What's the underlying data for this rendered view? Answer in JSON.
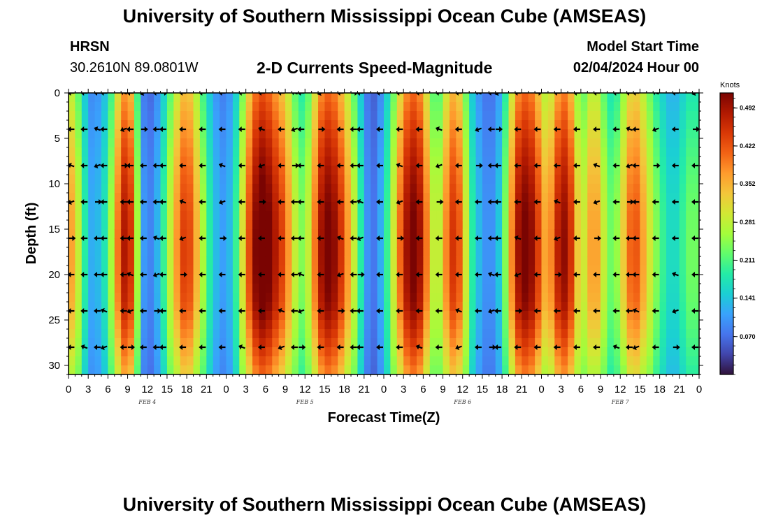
{
  "header": {
    "title": "University of Southern Mississippi Ocean Cube (AMSEAS)",
    "station": "HRSN",
    "coords": "30.2610N  89.0801W",
    "subtitle": "2-D Currents Speed-Magnitude",
    "model_start_label": "Model Start Time",
    "model_start_value": "02/04/2024 Hour 00"
  },
  "footer": {
    "title": "University of Southern Mississippi Ocean Cube (AMSEAS)"
  },
  "colors": {
    "colormap": [
      "#30123b",
      "#4145ab",
      "#4675ed",
      "#39a2fc",
      "#1bcfd4",
      "#24eca6",
      "#61fc6c",
      "#a4fc3b",
      "#d1e834",
      "#f3c63a",
      "#fe9b2d",
      "#f36315",
      "#d93806",
      "#b11901",
      "#7a0402"
    ],
    "arrow": "#000000"
  },
  "chart_data": {
    "type": "heatmap",
    "xlabel": "Forecast Time(Z)",
    "ylabel": "Depth (ft)",
    "colorbar_unit": "Knots",
    "colorbar_ticks": [
      "0.070",
      "0.141",
      "0.211",
      "0.281",
      "0.352",
      "0.422",
      "0.492"
    ],
    "colorbar_range": [
      0.0,
      0.52
    ],
    "y_ticks": [
      "0",
      "5",
      "10",
      "15",
      "20",
      "25",
      "30"
    ],
    "y_range": [
      0,
      31
    ],
    "x_ticks": [
      "0",
      "3",
      "6",
      "9",
      "12",
      "15",
      "18",
      "21",
      "0",
      "3",
      "6",
      "9",
      "12",
      "15",
      "18",
      "21",
      "0",
      "3",
      "6",
      "9",
      "12",
      "15",
      "18",
      "21",
      "0",
      "3",
      "6",
      "9",
      "12",
      "15",
      "18",
      "21",
      "0"
    ],
    "x_range_hours": [
      0,
      96
    ],
    "date_labels": [
      {
        "label": "FEB 4",
        "hour": 12
      },
      {
        "label": "FEB 5",
        "hour": 36
      },
      {
        "label": "FEB 6",
        "hour": 60
      },
      {
        "label": "FEB 7",
        "hour": 84
      }
    ],
    "vector_depths_ft": [
      0,
      4,
      8,
      12,
      16,
      20,
      24,
      28
    ],
    "vector_hours": [
      0,
      1,
      3,
      5,
      6,
      9,
      10,
      12,
      14,
      15,
      18,
      21,
      24,
      27,
      30,
      33,
      35,
      36,
      39,
      42,
      44,
      45,
      48,
      51,
      54,
      57,
      60,
      63,
      65,
      66,
      69,
      72,
      75,
      78,
      81,
      84,
      86,
      87,
      90,
      93,
      96
    ],
    "speed_profile_hours": [
      0,
      1,
      2,
      3,
      4,
      5,
      6,
      7,
      8,
      9,
      10,
      11,
      12,
      13,
      14,
      15,
      16,
      17,
      18,
      19,
      20,
      21,
      22,
      23,
      24,
      25,
      26,
      27,
      28,
      29,
      30,
      31,
      32,
      33,
      34,
      35,
      36,
      37,
      38,
      39,
      40,
      41,
      42,
      43,
      44,
      45,
      46,
      47,
      48,
      49,
      50,
      51,
      52,
      53,
      54,
      55,
      56,
      57,
      58,
      59,
      60,
      61,
      62,
      63,
      64,
      65,
      66,
      67,
      68,
      69,
      70,
      71,
      72,
      73,
      74,
      75,
      76,
      77,
      78,
      79,
      80,
      81,
      82,
      83,
      84,
      85,
      86,
      87,
      88,
      89,
      90,
      91,
      92,
      93,
      94,
      95,
      96
    ],
    "speed_profile_knots": [
      0.36,
      0.3,
      0.22,
      0.12,
      0.1,
      0.14,
      0.18,
      0.3,
      0.42,
      0.46,
      0.36,
      0.12,
      0.07,
      0.09,
      0.14,
      0.22,
      0.3,
      0.38,
      0.42,
      0.36,
      0.28,
      0.2,
      0.14,
      0.1,
      0.1,
      0.14,
      0.22,
      0.34,
      0.44,
      0.5,
      0.5,
      0.46,
      0.42,
      0.38,
      0.3,
      0.22,
      0.22,
      0.3,
      0.42,
      0.48,
      0.48,
      0.44,
      0.38,
      0.3,
      0.22,
      0.12,
      0.06,
      0.08,
      0.14,
      0.22,
      0.32,
      0.42,
      0.48,
      0.48,
      0.42,
      0.3,
      0.22,
      0.3,
      0.4,
      0.42,
      0.34,
      0.2,
      0.14,
      0.1,
      0.08,
      0.1,
      0.16,
      0.28,
      0.42,
      0.48,
      0.48,
      0.44,
      0.36,
      0.3,
      0.4,
      0.46,
      0.46,
      0.36,
      0.24,
      0.3,
      0.36,
      0.3,
      0.22,
      0.2,
      0.26,
      0.34,
      0.4,
      0.36,
      0.3,
      0.24,
      0.2,
      0.16,
      0.14,
      0.16,
      0.2,
      0.22,
      0.2
    ]
  }
}
